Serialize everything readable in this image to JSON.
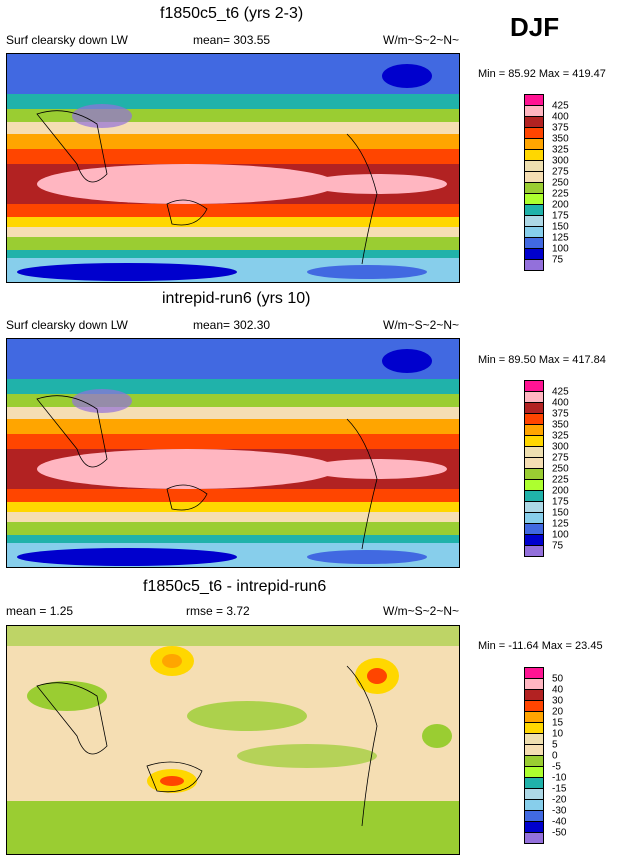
{
  "season": "DJF",
  "panels": [
    {
      "title": "f1850c5_t6 (yrs 2-3)",
      "left_label": "Surf clearsky down LW",
      "center_label": "mean= 303.55",
      "units": "W/m~S~2~N~",
      "min_label": "Min =",
      "min_value": "85.92",
      "max_label": "Max =",
      "max_value": "419.47"
    },
    {
      "title": "intrepid-run6 (yrs 10)",
      "left_label": "Surf clearsky down LW",
      "center_label": "mean= 302.30",
      "units": "W/m~S~2~N~",
      "min_label": "Min =",
      "min_value": "89.50",
      "max_label": "Max =",
      "max_value": "417.84"
    },
    {
      "title": "f1850c5_t6 - intrepid-run6",
      "left_label": "mean =   1.25",
      "center_label": "rmse =    3.72",
      "units": "W/m~S~2~N~",
      "min_label": "Min =",
      "min_value": "-11.64",
      "max_label": "Max =",
      "max_value": "23.45"
    }
  ],
  "legend_field": {
    "labels": [
      "425",
      "400",
      "375",
      "350",
      "325",
      "300",
      "275",
      "250",
      "225",
      "200",
      "175",
      "150",
      "125",
      "100",
      "75"
    ],
    "colors": [
      "#ff1493",
      "#ffb6c1",
      "#b22222",
      "#ff4500",
      "#ffa500",
      "#ffd700",
      "#eedfb0",
      "#f5deb3",
      "#9acd32",
      "#adff2f",
      "#20b2aa",
      "#add8e6",
      "#87ceeb",
      "#4169e1",
      "#0000cd",
      "#9370db"
    ]
  },
  "legend_diff": {
    "labels": [
      "50",
      "40",
      "30",
      "20",
      "15",
      "10",
      "5",
      "0",
      "-5",
      "-10",
      "-15",
      "-20",
      "-30",
      "-40",
      "-50"
    ],
    "colors": [
      "#ff1493",
      "#ffb6c1",
      "#b22222",
      "#ff4500",
      "#ffa500",
      "#ffd700",
      "#eedfb0",
      "#f5deb3",
      "#9acd32",
      "#adff2f",
      "#20b2aa",
      "#add8e6",
      "#87ceeb",
      "#4169e1",
      "#0000cd",
      "#9370db"
    ]
  }
}
